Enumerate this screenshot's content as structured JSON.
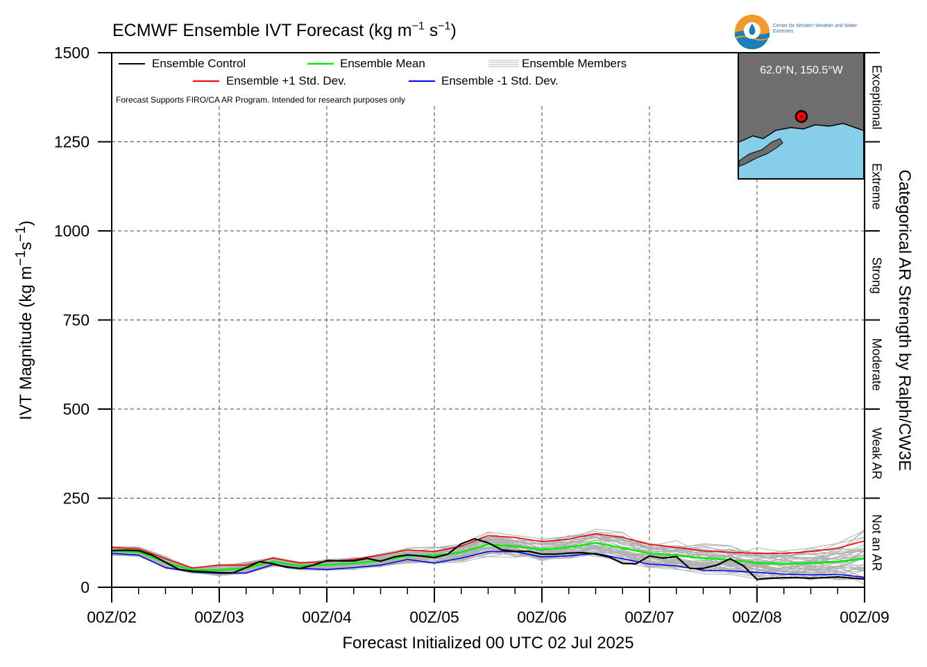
{
  "title": {
    "main": "ECMWF Ensemble IVT Forecast (kg m",
    "exp1": "−1",
    "mid": " s",
    "exp2": "−1",
    "end": ")"
  },
  "logo": {
    "text": "Center for Western Weather and Water Extremes"
  },
  "note": "Forecast Supports FIRO/CA AR Program. Intended for research purposes only",
  "inset": {
    "label": "62.0°N, 150.5°W"
  },
  "legend": {
    "control": "Ensemble Control",
    "mean": "Ensemble Mean",
    "members": "Ensemble Members",
    "plus": "Ensemble +1 Std. Dev.",
    "minus": "Ensemble -1 Std. Dev."
  },
  "axes": {
    "xlabel": "Forecast Initialized 00 UTC 02 Jul 2025",
    "ylabel_main": "IVT Magnitude (kg m",
    "ylabel_exp1": "−1",
    "ylabel_mid": "s",
    "ylabel_exp2": "−1",
    "ylabel_end": ")",
    "right_label": "Categorical AR Strength by Ralph/CW3E"
  },
  "chart_data": {
    "type": "line",
    "title": "ECMWF Ensemble IVT Forecast (kg m−1 s−1)",
    "xlabel": "Forecast Initialized 00 UTC 02 Jul 2025",
    "ylabel": "IVT Magnitude (kg m−1s−1)",
    "x_unit": "forecast hour",
    "x_ticks": [
      0,
      24,
      48,
      72,
      96,
      120,
      144,
      168
    ],
    "x_tick_labels": [
      "00Z/02",
      "00Z/03",
      "00Z/04",
      "00Z/05",
      "00Z/06",
      "00Z/07",
      "00Z/08",
      "00Z/09"
    ],
    "xlim": [
      0,
      168
    ],
    "ylim": [
      0,
      1500
    ],
    "y_ticks": [
      0,
      250,
      500,
      750,
      1000,
      1250,
      1500
    ],
    "grid": true,
    "legend_position": "top-left",
    "categories": [
      {
        "label": "Not an AR",
        "from": 0,
        "to": 250
      },
      {
        "label": "Weak AR",
        "from": 250,
        "to": 500
      },
      {
        "label": "Moderate",
        "from": 500,
        "to": 750
      },
      {
        "label": "Strong",
        "from": 750,
        "to": 1000
      },
      {
        "label": "Extreme",
        "from": 1000,
        "to": 1250
      },
      {
        "label": "Exceptional",
        "from": 1250,
        "to": 1500
      }
    ],
    "series": [
      {
        "name": "Ensemble Control",
        "color": "#000000",
        "x": [
          0,
          3,
          6,
          9,
          12,
          15,
          18,
          21,
          24,
          27,
          30,
          33,
          36,
          39,
          42,
          45,
          48,
          51,
          54,
          57,
          60,
          63,
          66,
          69,
          72,
          75,
          78,
          81,
          84,
          87,
          90,
          93,
          96,
          99,
          102,
          105,
          108,
          111,
          114,
          117,
          120,
          123,
          126,
          129,
          132,
          135,
          138,
          141,
          144,
          147,
          150,
          153,
          156,
          159,
          162,
          165,
          168
        ],
        "y": [
          103,
          104,
          103,
          90,
          70,
          50,
          45,
          43,
          41,
          40,
          55,
          72,
          66,
          56,
          53,
          62,
          75,
          74,
          74,
          81,
          73,
          85,
          91,
          88,
          83,
          93,
          122,
          136,
          125,
          105,
          101,
          101,
          93,
          93,
          96,
          97,
          93,
          85,
          67,
          66,
          88,
          82,
          86,
          53,
          53,
          62,
          80,
          60,
          22,
          25,
          27,
          27,
          25,
          27,
          29,
          26,
          23
        ]
      },
      {
        "name": "Ensemble Mean",
        "color": "#00ee00",
        "x": [
          0,
          6,
          12,
          18,
          24,
          30,
          36,
          42,
          48,
          54,
          60,
          66,
          72,
          78,
          84,
          90,
          96,
          102,
          108,
          114,
          120,
          126,
          132,
          138,
          144,
          150,
          156,
          162,
          168
        ],
        "y": [
          102,
          99,
          70,
          48,
          48,
          54,
          72,
          60,
          63,
          67,
          75,
          88,
          89,
          98,
          120,
          115,
          105,
          112,
          125,
          110,
          95,
          90,
          82,
          77,
          68,
          66,
          68,
          72,
          80
        ]
      },
      {
        "name": "Ensemble +1 Std. Dev.",
        "color": "#ee0000",
        "x": [
          0,
          6,
          12,
          18,
          24,
          30,
          36,
          42,
          48,
          54,
          60,
          66,
          72,
          78,
          84,
          90,
          96,
          102,
          108,
          114,
          120,
          126,
          132,
          138,
          144,
          150,
          156,
          162,
          168
        ],
        "y": [
          112,
          108,
          80,
          54,
          62,
          62,
          82,
          68,
          72,
          78,
          90,
          105,
          100,
          115,
          145,
          140,
          128,
          135,
          150,
          140,
          120,
          112,
          102,
          98,
          95,
          95,
          100,
          110,
          130
        ]
      },
      {
        "name": "Ensemble -1 Std. Dev.",
        "color": "#0000ee",
        "x": [
          0,
          6,
          12,
          18,
          24,
          30,
          36,
          42,
          48,
          54,
          60,
          66,
          72,
          78,
          84,
          90,
          96,
          102,
          108,
          114,
          120,
          126,
          132,
          138,
          144,
          150,
          156,
          162,
          168
        ],
        "y": [
          95,
          90,
          55,
          43,
          39,
          40,
          64,
          53,
          50,
          55,
          62,
          78,
          68,
          82,
          100,
          100,
          85,
          88,
          95,
          80,
          65,
          60,
          48,
          46,
          42,
          37,
          35,
          36,
          28
        ]
      }
    ]
  }
}
